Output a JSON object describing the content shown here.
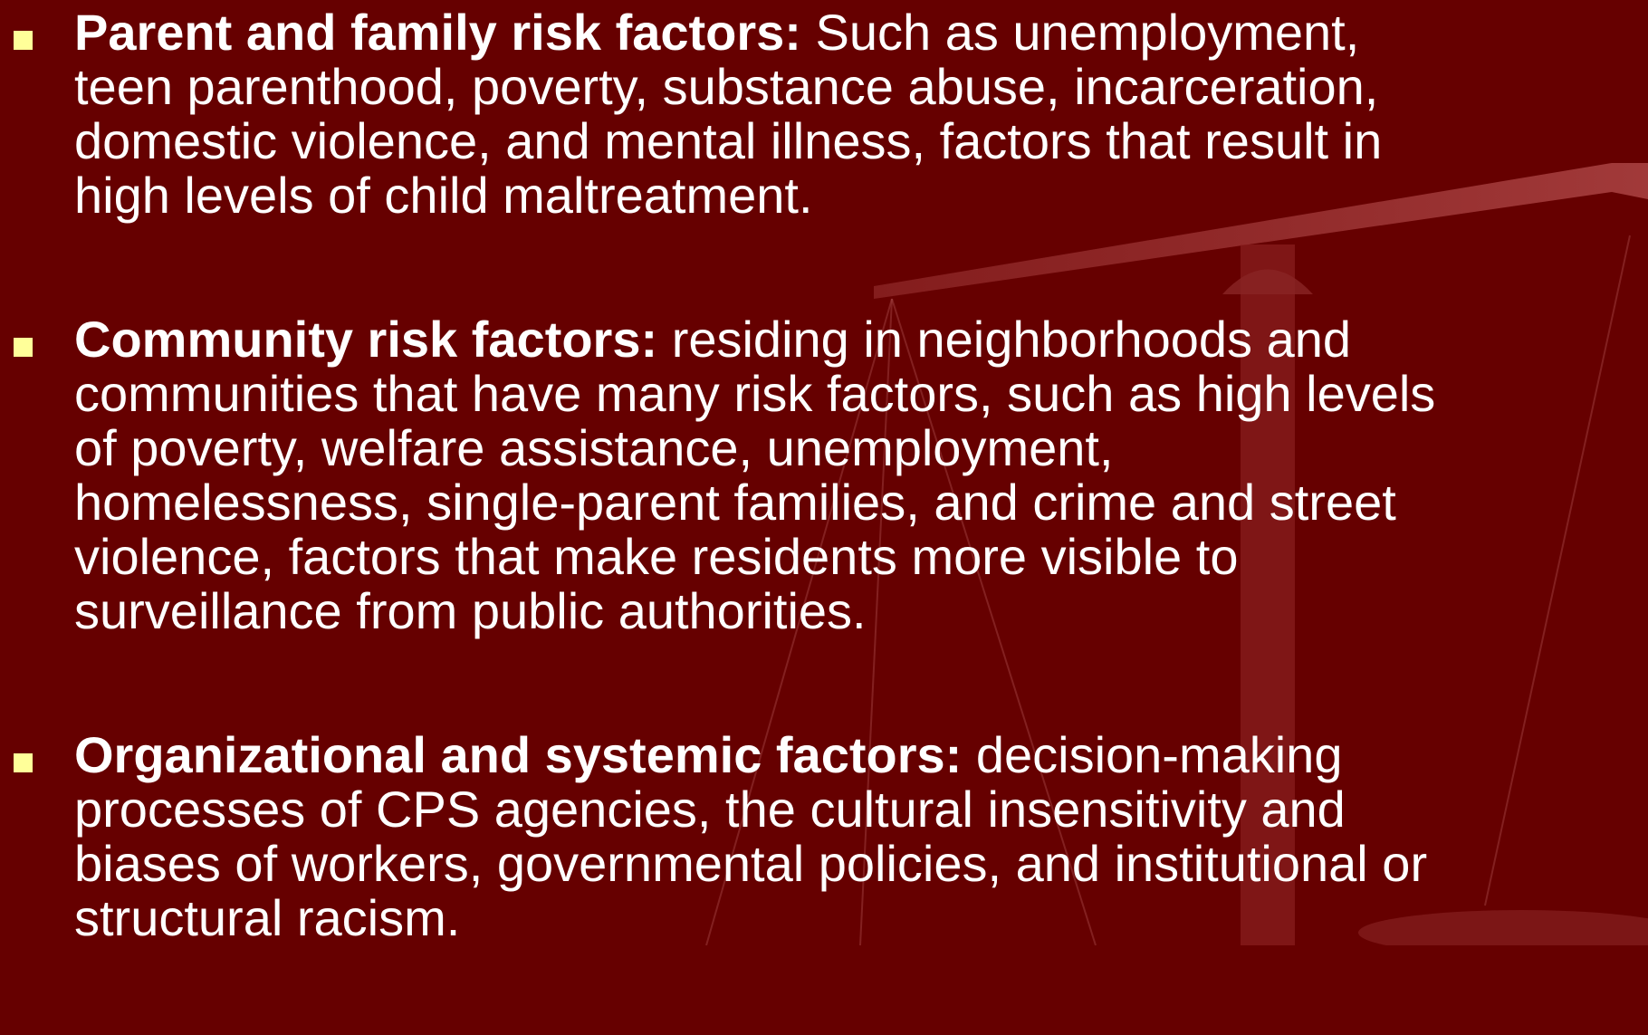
{
  "items": [
    {
      "label": "Parent and family risk factors:",
      "lines": [
        " Such as unemployment,",
        "teen parenthood, poverty, substance abuse, incarceration,",
        "domestic violence, and mental illness, factors that result in",
        "high levels of child maltreatment."
      ]
    },
    {
      "label": "Community risk factors:",
      "lines": [
        " residing in neighborhoods and",
        "communities that have many risk factors, such as high levels",
        "of poverty, welfare assistance, unemployment,",
        "homelessness, single-parent families, and crime and street",
        "violence, factors that make residents more visible to",
        "surveillance from public authorities."
      ]
    },
    {
      "label": "Organizational and systemic factors:",
      "lines": [
        " decision-making",
        "processes of CPS agencies, the cultural insensitivity and",
        "biases of workers, governmental policies, and institutional or",
        "structural racism."
      ]
    }
  ]
}
